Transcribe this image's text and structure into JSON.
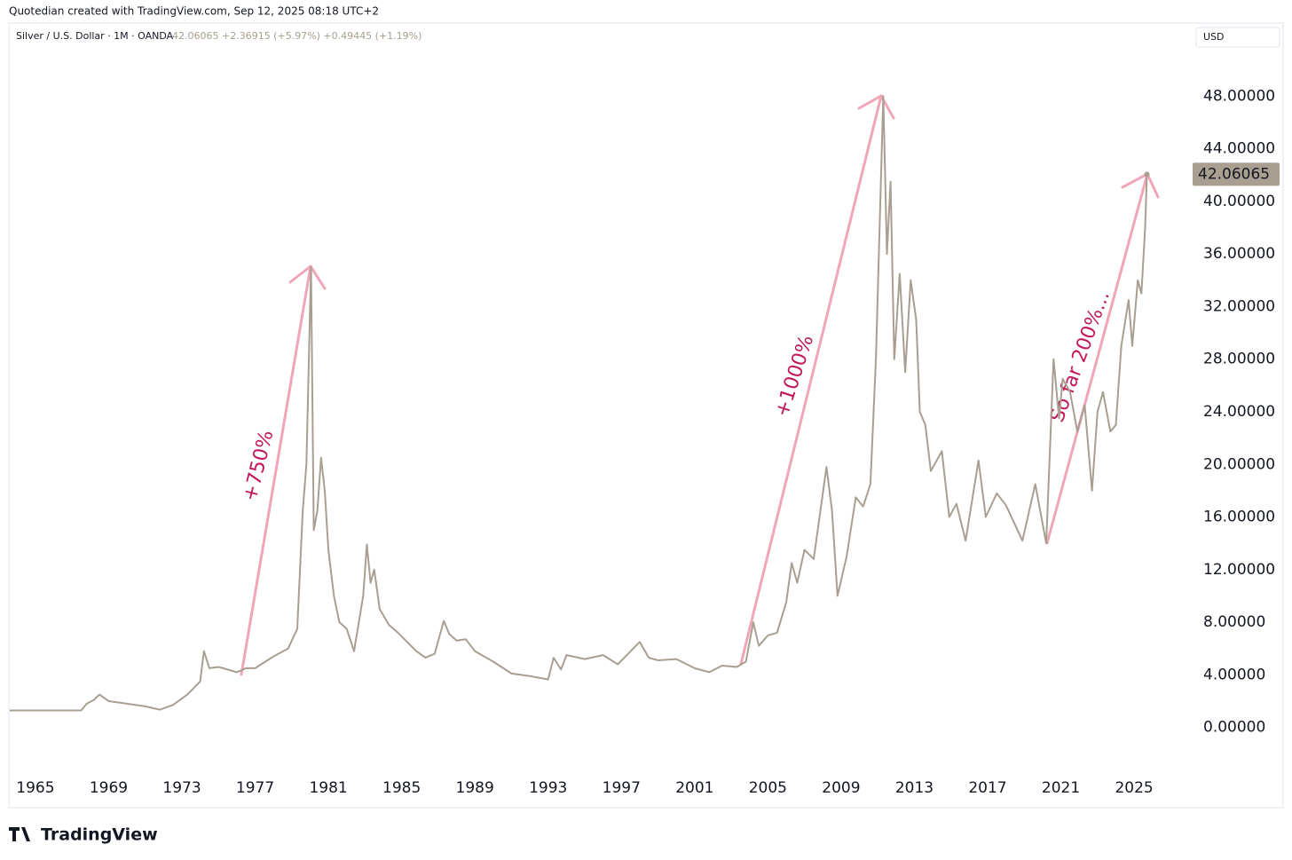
{
  "chart_data": {
    "type": "line",
    "header": "Quotedian created with TradingView.com, Sep 12, 2025 08:18 UTC+2",
    "title": "Silver / U.S. Dollar · 1M · OANDA",
    "legend_values": "42.06065 +2.36915 (+5.97%) +0.49445 (+1.19%)",
    "currency": "USD",
    "brand": "TradingView",
    "annotations": [
      "+750%",
      "+1000%",
      "So far 200%..."
    ],
    "last_price": {
      "value": 42.06065,
      "label": "42.06065"
    },
    "x": [
      1963.6,
      1967.5,
      1967.8,
      1968.2,
      1968.5,
      1969,
      1970,
      1971,
      1971.8,
      1972.5,
      1973.3,
      1974.0,
      1974.2,
      1974.5,
      1975,
      1975.5,
      1976,
      1976.5,
      1977,
      1978,
      1978.8,
      1979.3,
      1979.6,
      1979.8,
      1980.05,
      1980.2,
      1980.4,
      1980.6,
      1980.8,
      1981.0,
      1981.3,
      1981.6,
      1982.0,
      1982.4,
      1982.9,
      1983.1,
      1983.3,
      1983.5,
      1983.8,
      1984.3,
      1984.8,
      1985.3,
      1985.8,
      1986.3,
      1986.8,
      1987.3,
      1987.6,
      1988,
      1988.5,
      1989,
      1990,
      1991,
      1992,
      1993.0,
      1993.3,
      1993.7,
      1994,
      1995,
      1996,
      1996.8,
      1998.0,
      1998.5,
      1999,
      2000,
      2001,
      2001.8,
      2002.5,
      2003.3,
      2003.8,
      2004.2,
      2004.5,
      2005,
      2005.5,
      2006.0,
      2006.3,
      2006.6,
      2007,
      2007.5,
      2008.2,
      2008.5,
      2008.8,
      2009.3,
      2009.8,
      2010.2,
      2010.6,
      2010.9,
      2011.3,
      2011.5,
      2011.7,
      2011.9,
      2012.2,
      2012.5,
      2012.8,
      2013.1,
      2013.3,
      2013.6,
      2013.9,
      2014.5,
      2014.9,
      2015.3,
      2015.8,
      2016.5,
      2016.9,
      2017.5,
      2018,
      2018.9,
      2019.6,
      2020.2,
      2020.6,
      2020.9,
      2021.1,
      2021.5,
      2021.9,
      2022.3,
      2022.7,
      2023.0,
      2023.3,
      2023.7,
      2024.0,
      2024.3,
      2024.7,
      2024.9,
      2025.2,
      2025.4,
      2025.6,
      2025.7
    ],
    "series": [
      {
        "name": "Silver / U.S. Dollar",
        "color": "#a89f91",
        "values": [
          1.29,
          1.29,
          1.8,
          2.1,
          2.5,
          2.0,
          1.8,
          1.6,
          1.35,
          1.7,
          2.5,
          3.5,
          5.8,
          4.5,
          4.6,
          4.4,
          4.2,
          4.5,
          4.5,
          5.4,
          6.0,
          7.5,
          16.5,
          20,
          35.0,
          15.0,
          16.5,
          20.5,
          18,
          13.5,
          10,
          8.0,
          7.5,
          5.8,
          10,
          13.9,
          11,
          12,
          9,
          7.8,
          7.2,
          6.5,
          5.8,
          5.3,
          5.6,
          8.1,
          7.1,
          6.6,
          6.7,
          5.8,
          5.0,
          4.1,
          3.9,
          3.65,
          5.3,
          4.4,
          5.5,
          5.2,
          5.5,
          4.8,
          6.5,
          5.3,
          5.1,
          5.2,
          4.5,
          4.2,
          4.7,
          4.6,
          5.0,
          8.0,
          6.2,
          7.0,
          7.2,
          9.5,
          12.5,
          11,
          13.5,
          12.8,
          19.8,
          16.5,
          10.0,
          13,
          17.5,
          16.8,
          18.5,
          28,
          48.0,
          36,
          41.5,
          28,
          34.5,
          27,
          34.0,
          31,
          24,
          23,
          19.5,
          21,
          16,
          17,
          14.2,
          20.3,
          16,
          17.8,
          16.9,
          14.2,
          18.5,
          14.0,
          28.0,
          23.5,
          26.5,
          25.5,
          22.5,
          24.5,
          18.0,
          24,
          25.5,
          22.5,
          23,
          29,
          32.5,
          29,
          34,
          33,
          38,
          42.06065
        ]
      }
    ],
    "xlim": [
      1963.55,
      2028.0
    ],
    "xticks": [
      1965,
      1969,
      1973,
      1977,
      1981,
      1985,
      1989,
      1993,
      1997,
      2001,
      2005,
      2009,
      2013,
      2017,
      2021,
      2025
    ],
    "ylim": [
      -3.4,
      51.6
    ],
    "yticks": [
      {
        "value": 0,
        "label": "0.00000"
      },
      {
        "value": 4,
        "label": "4.00000"
      },
      {
        "value": 8,
        "label": "8.00000"
      },
      {
        "value": 12,
        "label": "12.00000"
      },
      {
        "value": 16,
        "label": "16.00000"
      },
      {
        "value": 20,
        "label": "20.00000"
      },
      {
        "value": 24,
        "label": "24.00000"
      },
      {
        "value": 28,
        "label": "28.00000"
      },
      {
        "value": 32,
        "label": "32.00000"
      },
      {
        "value": 36,
        "label": "36.00000"
      },
      {
        "value": 40,
        "label": "40.00000"
      },
      {
        "value": 44,
        "label": "44.00000"
      },
      {
        "value": 48,
        "label": "48.00000"
      }
    ]
  }
}
